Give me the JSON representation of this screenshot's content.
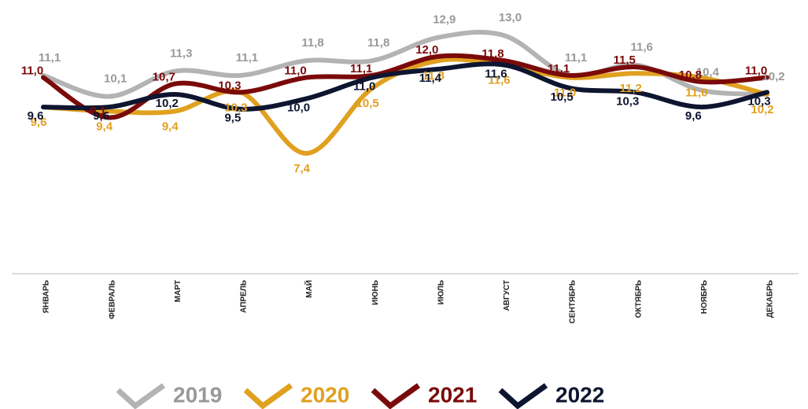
{
  "chart_data": {
    "type": "line",
    "categories": [
      "ЯНВАРЬ",
      "ФЕВРАЛЬ",
      "МАРТ",
      "АПРЕЛЬ",
      "МАЙ",
      "ИЮНЬ",
      "ИЮЛЬ",
      "АВГУСТ",
      "СЕНТЯБРЬ",
      "ОКТЯБРЬ",
      "НОЯБРЬ",
      "ДЕКАБРЬ"
    ],
    "series": [
      {
        "name": "2019",
        "color": "#b3b3b3",
        "values": [
          11.1,
          10.1,
          11.3,
          11.1,
          11.8,
          11.8,
          12.9,
          13.0,
          11.1,
          11.6,
          10.4,
          10.2
        ],
        "value_labels": [
          "11,1",
          "10,1",
          "11,3",
          "11,1",
          "11,8",
          "11,8",
          "12,9",
          "13,0",
          "11,1",
          "11,6",
          "10,4",
          "10,2"
        ]
      },
      {
        "name": "2020",
        "color": "#e0a020",
        "values": [
          9.6,
          9.4,
          9.4,
          10.3,
          7.4,
          10.5,
          11.8,
          11.6,
          11.0,
          11.2,
          11.0,
          10.2
        ],
        "value_labels": [
          "9,6",
          "9,4",
          "9,4",
          "10,3",
          "7,4",
          "10,5",
          "11,8",
          "11,6",
          "11,0",
          "11,2",
          "11,0",
          "10,2"
        ]
      },
      {
        "name": "2021",
        "color": "#7a0a0a",
        "values": [
          11.0,
          9.1,
          10.7,
          10.3,
          11.0,
          11.1,
          12.0,
          11.8,
          11.1,
          11.5,
          10.8,
          11.0
        ],
        "value_labels": [
          "11,0",
          "9,1",
          "10,7",
          "10,3",
          "11,0",
          "11,1",
          "12,0",
          "11,8",
          "11,1",
          "11,5",
          "10,8",
          "11,0"
        ]
      },
      {
        "name": "2022",
        "color": "#0d1530",
        "values": [
          9.6,
          9.6,
          10.2,
          9.5,
          10.0,
          11.0,
          11.4,
          11.6,
          10.5,
          10.3,
          9.6,
          10.3
        ],
        "value_labels": [
          "9,6",
          "9,6",
          "10,2",
          "9,5",
          "10,0",
          "11,0",
          "11,4",
          "11,6",
          "10,5",
          "10,3",
          "9,6",
          "10,3"
        ]
      }
    ]
  }
}
